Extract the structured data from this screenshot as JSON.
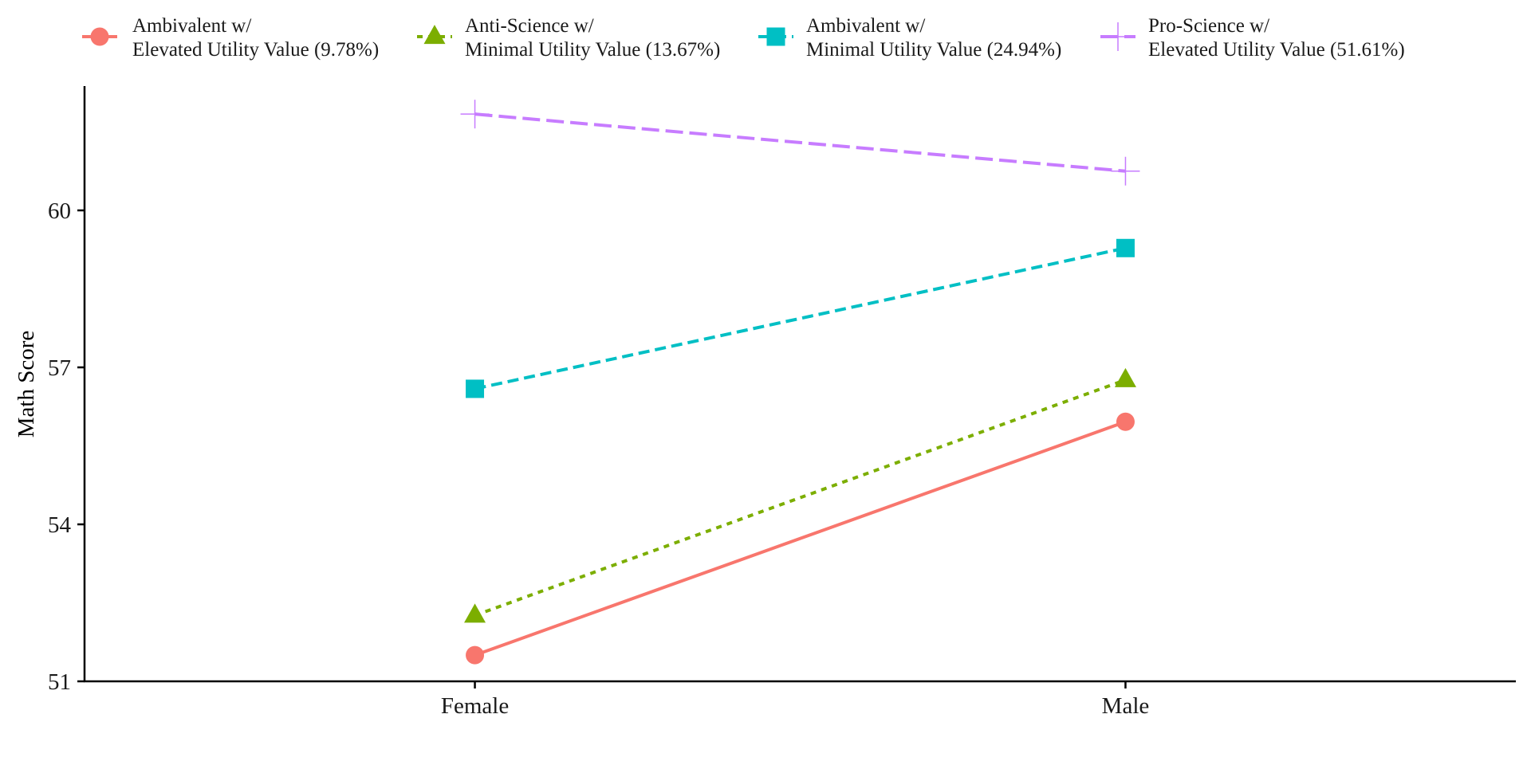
{
  "chart_data": {
    "type": "line",
    "title": "",
    "xlabel": "",
    "ylabel": "Math Score",
    "categories": [
      "Female",
      "Male"
    ],
    "ylim": [
      51,
      61.9
    ],
    "yticks": [
      51,
      54,
      57,
      60
    ],
    "ytick_labels": [
      "51",
      "54",
      "57",
      "60"
    ],
    "grid": false,
    "legend_position": "top",
    "series": [
      {
        "name_line1": "Ambivalent w/",
        "name_line2": "Elevated Utility Value (9.78%)",
        "color": "#F8766D",
        "marker": "circle",
        "linestyle": "solid",
        "values": [
          51.5,
          55.96
        ]
      },
      {
        "name_line1": "Anti-Science w/",
        "name_line2": "Minimal Utility Value (13.67%)",
        "color": "#7CAE00",
        "marker": "triangle",
        "linestyle": "dotted",
        "values": [
          52.26,
          56.76
        ]
      },
      {
        "name_line1": "Ambivalent w/",
        "name_line2": "Minimal Utility Value (24.94%)",
        "color": "#00BFC4",
        "marker": "square",
        "linestyle": "dashed",
        "values": [
          56.59,
          59.28
        ]
      },
      {
        "name_line1": "Pro-Science w/",
        "name_line2": "Elevated Utility Value (51.61%)",
        "color": "#C77CFF",
        "marker": "cross",
        "linestyle": "longdash",
        "values": [
          61.84,
          60.75
        ]
      }
    ]
  }
}
